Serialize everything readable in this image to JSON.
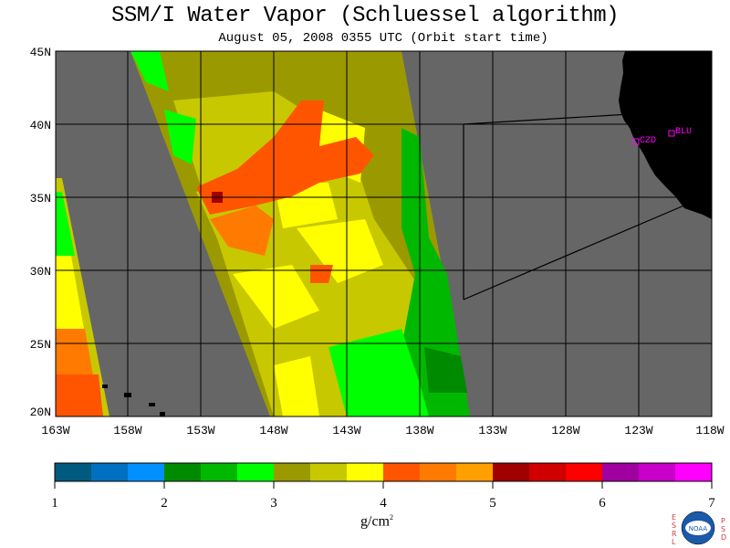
{
  "title": "SSM/I Water Vapor (Schluessel algorithm)",
  "subtitle": "August 05, 2008   0355 UTC  (Orbit start time)",
  "map": {
    "lat_labels": [
      "45N",
      "40N",
      "35N",
      "30N",
      "25N",
      "20N"
    ],
    "lon_labels": [
      "163W",
      "158W",
      "153W",
      "148W",
      "143W",
      "138W",
      "133W",
      "128W",
      "123W",
      "118W"
    ],
    "stations": [
      {
        "name": "CZD",
        "lat": 38.6,
        "lon": -123.2
      },
      {
        "name": "BLU",
        "lat": 39.3,
        "lon": -120.9
      }
    ],
    "colors": {
      "land": "#000000",
      "no_data": "#666666",
      "grid": "#000000",
      "station": "#ff00ff"
    }
  },
  "colorbar": {
    "ticks": [
      "1",
      "2",
      "3",
      "4",
      "5",
      "6",
      "7"
    ],
    "units": "g/cm",
    "units_exponent": "2",
    "colors": [
      "#005a80",
      "#0070c0",
      "#0090ff",
      "#008a00",
      "#00b800",
      "#00ff00",
      "#9a9a00",
      "#c8c800",
      "#ffff00",
      "#ff5500",
      "#ff7a00",
      "#ffa000",
      "#a00000",
      "#d00000",
      "#ff0000",
      "#a000a0",
      "#c800c8",
      "#ff00ff"
    ]
  },
  "logo": {
    "left_letters": "ESRL",
    "right_letters": "PSD",
    "badge": "NOAA"
  }
}
